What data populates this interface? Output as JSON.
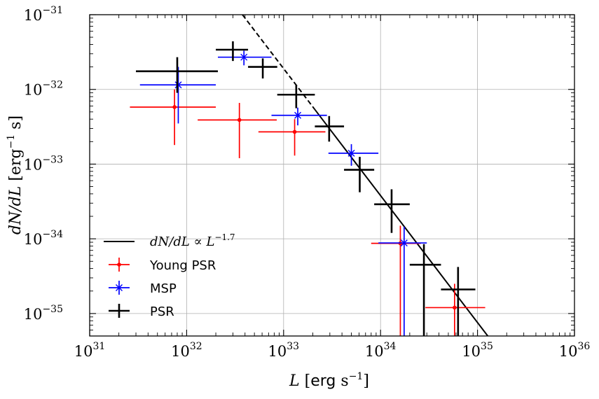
{
  "chart_data": {
    "type": "scatter",
    "xscale": "log",
    "yscale": "log",
    "xlim": [
      1e+31,
      1e+36
    ],
    "ylim": [
      5e-36,
      1e-31
    ],
    "x_tick_exponents": [
      31,
      32,
      33,
      34,
      35,
      36
    ],
    "y_tick_exponents": [
      -35,
      -34,
      -33,
      -32,
      -31
    ],
    "tick_base": "10",
    "xlabel": {
      "var": "L",
      "open": " [",
      "unit": "erg",
      "mid": " s",
      "exp": "−1",
      "close": "]"
    },
    "ylabel": {
      "var": "dN/dL",
      "open": " [",
      "unit": "erg",
      "exp": "−1",
      "mid": " s",
      "close": "]"
    },
    "grid": true,
    "legend_position": "lower-left",
    "series": [
      {
        "name": "Young PSR",
        "color": "#ff0000",
        "marker": "dot",
        "points": [
          {
            "x": 7.5e+31,
            "y": 5.8e-33,
            "xlo": 2.6e+31,
            "xhi": 2e+32,
            "ylo": 1.8e-33,
            "yhi": 1e-32
          },
          {
            "x": 3.5e+32,
            "y": 3.9e-33,
            "xlo": 1.3e+32,
            "xhi": 8.5e+32,
            "ylo": 1.2e-33,
            "yhi": 6.6e-33
          },
          {
            "x": 1.3e+33,
            "y": 2.7e-33,
            "xlo": 5.5e+32,
            "xhi": 2.7e+33,
            "ylo": 1.3e-33,
            "yhi": 4e-33
          },
          {
            "x": 1.6e+34,
            "y": 8.7e-35,
            "xlo": 8e+33,
            "xhi": 2.6e+34,
            "ylo": 2.6e-36,
            "yhi": 1.5e-34
          },
          {
            "x": 5.8e+34,
            "y": 1.2e-35,
            "xlo": 2.9e+34,
            "xhi": 1.2e+35,
            "ylo": 5e-36,
            "yhi": 2.5e-35
          }
        ]
      },
      {
        "name": "MSP",
        "color": "#0000ff",
        "marker": "x",
        "points": [
          {
            "x": 8.2e+31,
            "y": 1.15e-32,
            "xlo": 3.3e+31,
            "xhi": 2e+32,
            "ylo": 3.5e-33,
            "yhi": 2e-32
          },
          {
            "x": 3.9e+32,
            "y": 2.7e-32,
            "xlo": 2.1e+32,
            "xhi": 7.5e+32,
            "ylo": 2.1e-32,
            "yhi": 3.3e-32
          },
          {
            "x": 1.4e+33,
            "y": 4.5e-33,
            "xlo": 7.5e+32,
            "xhi": 2.8e+33,
            "ylo": 3.3e-33,
            "yhi": 5.7e-33
          },
          {
            "x": 5e+33,
            "y": 1.4e-33,
            "xlo": 2.9e+33,
            "xhi": 9.5e+33,
            "ylo": 9.5e-34,
            "yhi": 1.85e-33
          },
          {
            "x": 1.75e+34,
            "y": 8.8e-35,
            "xlo": 9.5e+33,
            "xhi": 3e+34,
            "ylo": 2.6e-36,
            "yhi": 1.45e-34
          }
        ]
      },
      {
        "name": "PSR",
        "color": "#000000",
        "marker": "plus",
        "points": [
          {
            "x": 8e+31,
            "y": 1.75e-32,
            "xlo": 3e+31,
            "xhi": 2.1e+32,
            "ylo": 9e-33,
            "yhi": 2.7e-32
          },
          {
            "x": 3e+32,
            "y": 3.4e-32,
            "xlo": 2e+32,
            "xhi": 4.3e+32,
            "ylo": 2.4e-32,
            "yhi": 4.4e-32
          },
          {
            "x": 6.1e+32,
            "y": 2e-32,
            "xlo": 4.3e+32,
            "xhi": 8.6e+32,
            "ylo": 1.4e-32,
            "yhi": 2.6e-32
          },
          {
            "x": 1.35e+33,
            "y": 8.5e-33,
            "xlo": 8.6e+32,
            "xhi": 2.1e+33,
            "ylo": 5.6e-33,
            "yhi": 1.15e-32
          },
          {
            "x": 2.95e+33,
            "y": 3.2e-33,
            "xlo": 2.1e+33,
            "xhi": 4.2e+33,
            "ylo": 2e-33,
            "yhi": 4.4e-33
          },
          {
            "x": 6.1e+33,
            "y": 8.4e-34,
            "xlo": 4.2e+33,
            "xhi": 8.6e+33,
            "ylo": 4.2e-34,
            "yhi": 1.25e-33
          },
          {
            "x": 1.3e+34,
            "y": 2.9e-34,
            "xlo": 8.6e+33,
            "xhi": 2e+34,
            "ylo": 1.2e-34,
            "yhi": 4.6e-34
          },
          {
            "x": 2.8e+34,
            "y": 4.5e-35,
            "xlo": 2e+34,
            "xhi": 4.2e+34,
            "ylo": 3e-36,
            "yhi": 8.5e-35
          },
          {
            "x": 6.3e+34,
            "y": 2.1e-35,
            "xlo": 4.2e+34,
            "xhi": 9.5e+34,
            "ylo": 3e-36,
            "yhi": 4.2e-35
          }
        ]
      }
    ],
    "power_law": {
      "label_lhs": "dN/dL",
      "label_rel": " ∝ ",
      "label_base": "L",
      "label_exp": "−1.7",
      "slope": -1.7,
      "anchor_x": 1e+33,
      "anchor_y": 1.9e-32,
      "solid_from_x": 2.1e+33,
      "dashed_from_x": 6e+32,
      "color": "#000000"
    }
  }
}
